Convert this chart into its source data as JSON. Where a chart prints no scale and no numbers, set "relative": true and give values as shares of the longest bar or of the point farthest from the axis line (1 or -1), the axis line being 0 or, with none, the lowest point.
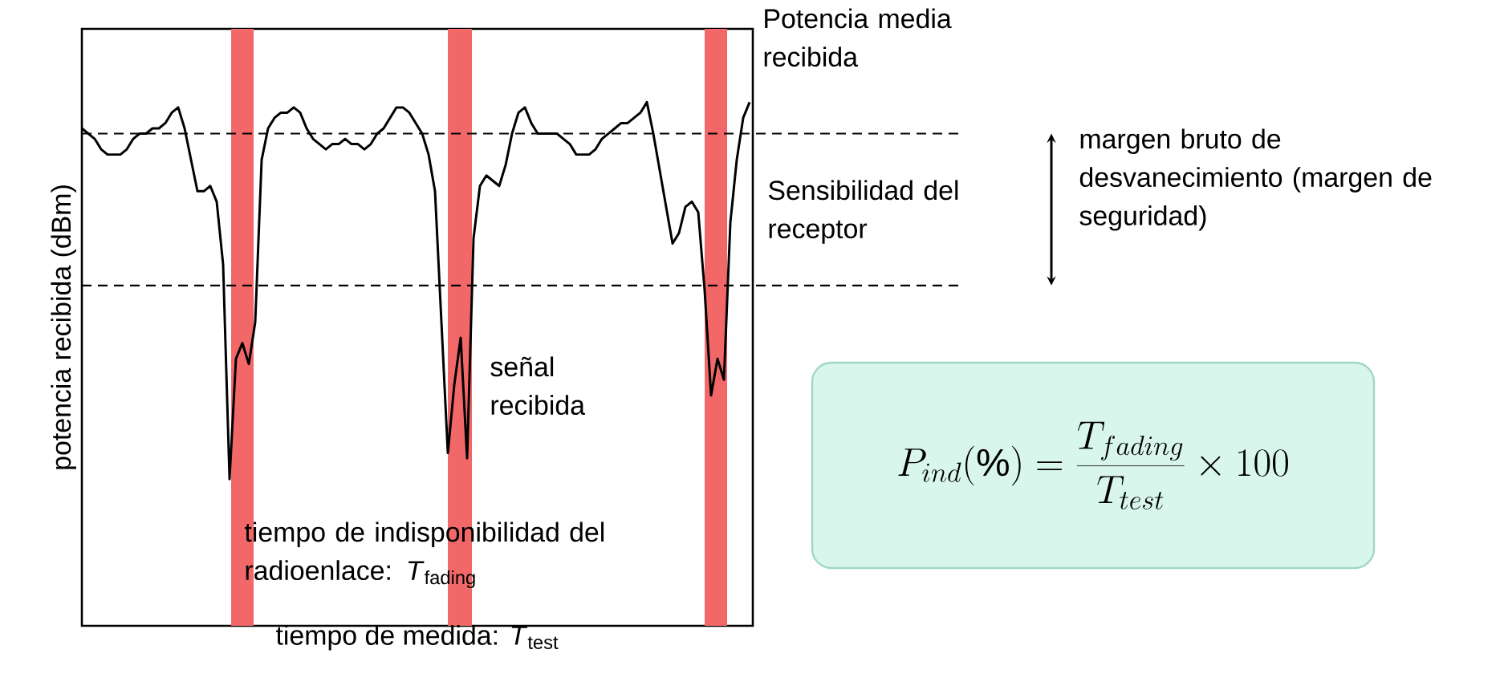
{
  "chart_data": {
    "type": "line",
    "relative": true,
    "xlabel": "tiempo de medida: *T*$_{test}$",
    "ylabel": "potencia recibida (dBm)",
    "categories": [
      null,
      null,
      null,
      null,
      null,
      null,
      null,
      null,
      null,
      null,
      null,
      null,
      null,
      null,
      null,
      null,
      null,
      null,
      null,
      null,
      null,
      null,
      null,
      null,
      null,
      null,
      null,
      null,
      null,
      null,
      null,
      null,
      null,
      null,
      null,
      null,
      null,
      null,
      null,
      null,
      null,
      null,
      null,
      null,
      null,
      null,
      null,
      null,
      null,
      null,
      null,
      null,
      null,
      null,
      null,
      null,
      null,
      null,
      null,
      null,
      null,
      null,
      null,
      null,
      null,
      null,
      null,
      null,
      null,
      null,
      null,
      null,
      null,
      null,
      null,
      null,
      null,
      null,
      null,
      null,
      null,
      null,
      null,
      null,
      null,
      null,
      null,
      null,
      null,
      null,
      null,
      null,
      null,
      null,
      null,
      null,
      null,
      null,
      null,
      null,
      null,
      null,
      null,
      null,
      null
    ],
    "series": [
      {
        "color": "#000000",
        "values": [
          0.95,
          0.94,
          0.93,
          0.91,
          0.9,
          0.9,
          0.9,
          0.91,
          0.93,
          0.94,
          0.94,
          0.95,
          0.95,
          0.96,
          0.98,
          0.99,
          0.95,
          0.89,
          0.83,
          0.83,
          0.84,
          0.81,
          0.69,
          0.28,
          0.51,
          0.54,
          0.5,
          0.58,
          0.89,
          0.95,
          0.97,
          0.98,
          0.98,
          0.99,
          0.98,
          0.95,
          0.93,
          0.92,
          0.91,
          0.92,
          0.92,
          0.93,
          0.92,
          0.92,
          0.91,
          0.92,
          0.94,
          0.95,
          0.97,
          0.99,
          0.99,
          0.98,
          0.96,
          0.94,
          0.9,
          0.83,
          0.58,
          0.33,
          0.46,
          0.55,
          0.32,
          0.74,
          0.84,
          0.86,
          0.85,
          0.84,
          0.88,
          0.94,
          0.98,
          0.99,
          0.96,
          0.94,
          0.94,
          0.94,
          0.94,
          0.93,
          0.92,
          0.9,
          0.9,
          0.9,
          0.91,
          0.93,
          0.94,
          0.95,
          0.96,
          0.96,
          0.97,
          0.98,
          1.0,
          0.94,
          0.87,
          0.8,
          0.73,
          0.75,
          0.8,
          0.81,
          0.79,
          0.64,
          0.44,
          0.51,
          0.47,
          0.77,
          0.89,
          0.97,
          1.0
        ]
      }
    ],
    "ref_lines": [
      {
        "axis": "y",
        "value": 0.94,
        "label": "Potencia media recibida",
        "line_style": "dashed",
        "color": "#000000"
      },
      {
        "axis": "y",
        "value": 0.65,
        "label": "Sensibilidad del receptor",
        "line_style": "dashed",
        "color": "#000000"
      }
    ],
    "annotations": [
      "señal recibida",
      "tiempo de indisponibilidad del radioenlace: *T*$_{fading}$",
      "margen bruto de desvanecimiento (margen de seguridad)",
      "P_{ind}(\\%)=\\frac{T_{fading}}{T_{test}}\\times 100"
    ],
    "line_style": "solid"
  }
}
